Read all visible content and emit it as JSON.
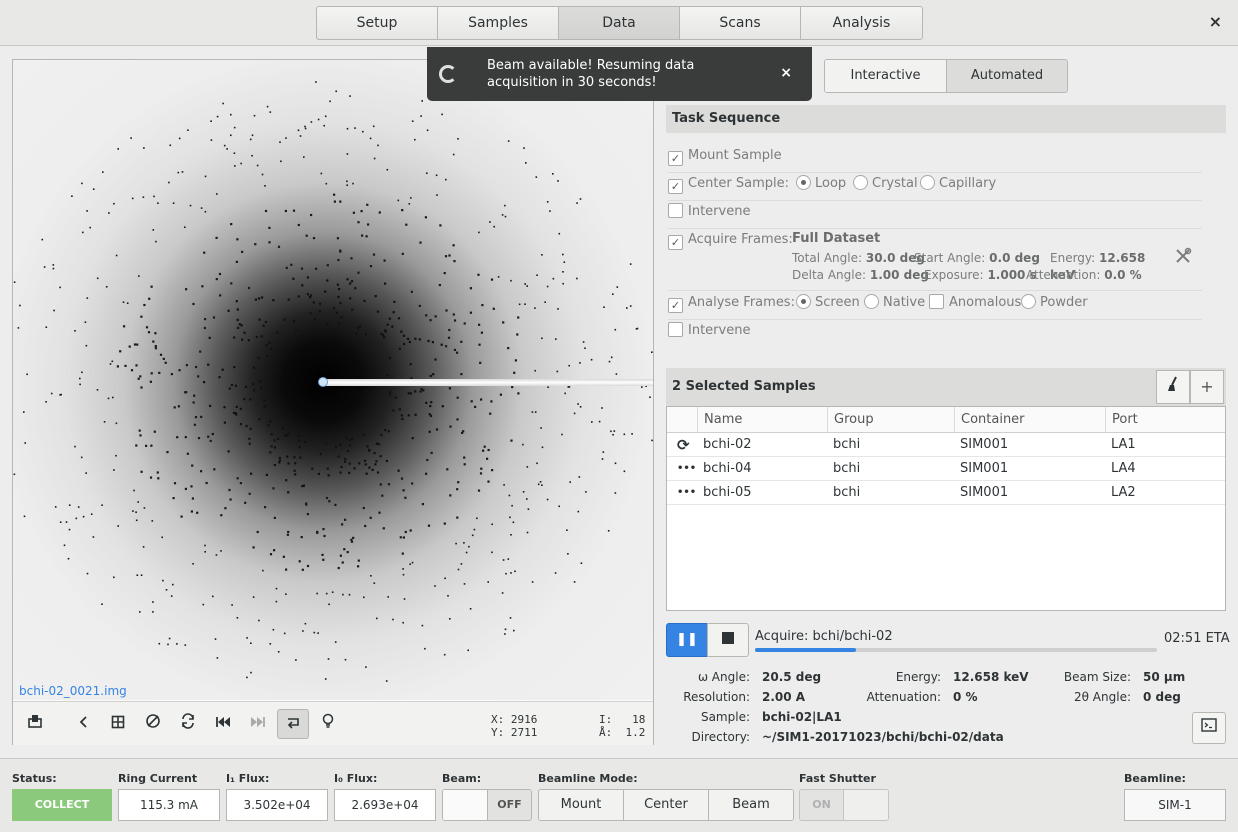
{
  "header": {
    "tabs": [
      "Setup",
      "Samples",
      "Data",
      "Scans",
      "Analysis"
    ],
    "active_tab": "Data",
    "close": "×"
  },
  "notification": {
    "text": "Beam available! Resuming data acquisition in 30 seconds!",
    "close": "×"
  },
  "image": {
    "filename": "bchi-02_0021.img",
    "x": "X: 2916",
    "y": "Y: 2711",
    "i": "I:   18",
    "a": "Å:  1.2",
    "toolbar_icons": [
      "save-icon",
      "prev-icon",
      "grid-icon",
      "colormap-icon",
      "refresh-icon",
      "first-icon",
      "last-icon",
      "follow-icon",
      "lightbulb-icon"
    ]
  },
  "mode": {
    "interactive": "Interactive",
    "automated": "Automated",
    "active": "Automated"
  },
  "tasks": {
    "title": "Task Sequence",
    "mount": {
      "label": "Mount Sample",
      "checked": true
    },
    "center": {
      "label": "Center Sample:",
      "checked": true,
      "options": [
        "Loop",
        "Crystal",
        "Capillary"
      ],
      "selected": "Loop"
    },
    "intervene1": {
      "label": "Intervene",
      "checked": false
    },
    "acquire": {
      "label": "Acquire Frames:",
      "checked": true,
      "name": "Full Dataset",
      "total_angle_l": "Total Angle:",
      "total_angle": "30.0 deg",
      "start_angle_l": "Start Angle:",
      "start_angle": "0.0 deg",
      "energy_l": "Energy:",
      "energy": "12.658 keV",
      "delta_angle_l": "Delta Angle:",
      "delta_angle": "1.00 deg",
      "exposure_l": "Exposure:",
      "exposure": "1.000 s",
      "attenuation_l": "Attenuation:",
      "attenuation": "0.0 %"
    },
    "analyse": {
      "label": "Analyse Frames:",
      "checked": true,
      "options": [
        "Screen",
        "Native",
        "Anomalous",
        "Powder"
      ],
      "selected": "Screen"
    },
    "intervene2": {
      "label": "Intervene",
      "checked": false
    }
  },
  "samples": {
    "title": "2 Selected Samples",
    "columns": [
      "Name",
      "Group",
      "Container",
      "Port"
    ],
    "rows": [
      {
        "state": "⟳",
        "name": "bchi-02",
        "group": "bchi",
        "container": "SIM001",
        "port": "LA1"
      },
      {
        "state": "•••",
        "name": "bchi-04",
        "group": "bchi",
        "container": "SIM001",
        "port": "LA4"
      },
      {
        "state": "•••",
        "name": "bchi-05",
        "group": "bchi",
        "container": "SIM001",
        "port": "LA2"
      }
    ]
  },
  "acquire": {
    "label": "Acquire: bchi/bchi-02",
    "progress": 0.25,
    "eta": "02:51 ETA",
    "omega_l": "ω Angle:",
    "omega": "20.5 deg",
    "energy_l": "Energy:",
    "energy": "12.658 keV",
    "beamsize_l": "Beam Size:",
    "beamsize": "50 μm",
    "resolution_l": "Resolution:",
    "resolution": "2.00 A",
    "attenuation_l": "Attenuation:",
    "attenuation": "0 %",
    "twotheta_l": "2θ Angle:",
    "twotheta": "0 deg",
    "sample_l": "Sample:",
    "sample": "bchi-02|LA1",
    "directory_l": "Directory:",
    "directory": "~/SIM1-20171023/bchi/bchi-02/data"
  },
  "status": {
    "status_l": "Status:",
    "status": "COLLECT",
    "ring_l": "Ring Current",
    "ring": "115.3 mA",
    "i1_l": "I₁ Flux:",
    "i1": "3.502e+04",
    "i0_l": "I₀ Flux:",
    "i0": "2.693e+04",
    "beam_l": "Beam:",
    "beam": "OFF",
    "mode_l": "Beamline Mode:",
    "modes": [
      "Mount",
      "Center",
      "Beam"
    ],
    "shutter_l": "Fast Shutter",
    "shutter": "ON",
    "beamline_l": "Beamline:",
    "beamline": "SIM-1"
  },
  "colors": {
    "accent": "#3584e4",
    "collect": "#8bc97c",
    "notification": "#3a3c3c"
  }
}
